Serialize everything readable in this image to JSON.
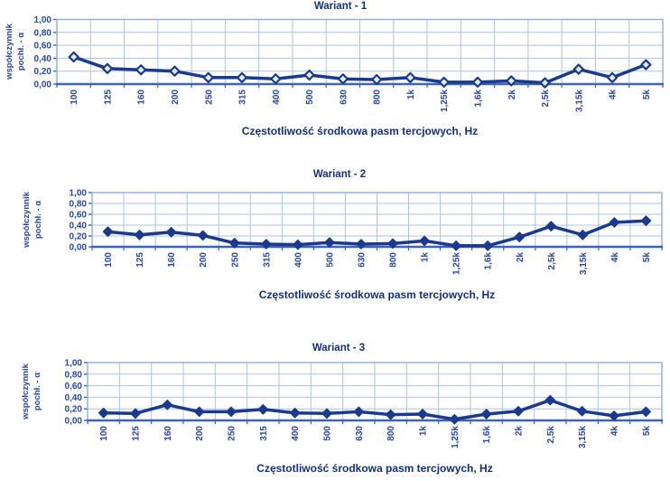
{
  "colors": {
    "title_navy": "#13307d",
    "label_blue": "#2847a8",
    "grid_blue": "#a9c4e4",
    "border_blue": "#8fafd9",
    "axis_blue": "#3f63b5",
    "line_navy": "#1a3a8f",
    "open_marker_fill": "#e6edf9",
    "background": "#ffffff"
  },
  "axis": {
    "ylabel_lines": [
      "współczynnik",
      "pochł. - α"
    ],
    "xlabel": "Częstotliwość środkowa pasm tercjowych, Hz",
    "yticks": [
      "1,00",
      "0,80",
      "0,60",
      "0,40",
      "0,20",
      "0,00"
    ]
  },
  "chart_data": [
    {
      "type": "line",
      "title": "Wariant - 1",
      "categories": [
        "100",
        "125",
        "160",
        "200",
        "250",
        "315",
        "400",
        "500",
        "630",
        "800",
        "1k",
        "1,25k",
        "1,6k",
        "2k",
        "2,5k",
        "3,15k",
        "4k",
        "5k"
      ],
      "values": [
        0.42,
        0.24,
        0.22,
        0.2,
        0.1,
        0.1,
        0.08,
        0.14,
        0.08,
        0.07,
        0.1,
        0.03,
        0.03,
        0.05,
        0.02,
        0.23,
        0.1,
        0.3
      ],
      "xlabel": "Częstotliwość środkowa pasm tercjowych, Hz",
      "ylabel": "współczynnik pochł. - α",
      "ylim": [
        0,
        1
      ],
      "ytick_step": 0.2,
      "grid": true,
      "legend": "none",
      "marker": "open-diamond"
    },
    {
      "type": "line",
      "title": "Wariant - 2",
      "categories": [
        "100",
        "125",
        "160",
        "200",
        "250",
        "315",
        "400",
        "500",
        "630",
        "800",
        "1k",
        "1,25k",
        "1,6k",
        "2k",
        "2,5k",
        "3,15k",
        "4k",
        "5k"
      ],
      "values": [
        0.28,
        0.22,
        0.27,
        0.21,
        0.07,
        0.05,
        0.04,
        0.08,
        0.05,
        0.06,
        0.11,
        0.02,
        0.02,
        0.18,
        0.38,
        0.22,
        0.45,
        0.48
      ],
      "xlabel": "Częstotliwość środkowa pasm tercjowych, Hz",
      "ylabel": "współczynnik pochł. - α",
      "ylim": [
        0,
        1
      ],
      "ytick_step": 0.2,
      "grid": true,
      "legend": "none",
      "marker": "filled-diamond"
    },
    {
      "type": "line",
      "title": "Wariant - 3",
      "categories": [
        "100",
        "125",
        "160",
        "200",
        "250",
        "315",
        "400",
        "500",
        "630",
        "800",
        "1k",
        "1,25k",
        "1,6k",
        "2k",
        "2,5k",
        "3,15k",
        "4k",
        "5k"
      ],
      "values": [
        0.13,
        0.12,
        0.27,
        0.15,
        0.15,
        0.19,
        0.13,
        0.12,
        0.15,
        0.1,
        0.11,
        0.02,
        0.11,
        0.16,
        0.35,
        0.16,
        0.08,
        0.15
      ],
      "xlabel": "Częstotliwość środkowa pasm tercjowych, Hz",
      "ylabel": "współczynnik pochł. - α",
      "ylim": [
        0,
        1
      ],
      "ytick_step": 0.2,
      "grid": true,
      "legend": "none",
      "marker": "filled-diamond"
    }
  ]
}
